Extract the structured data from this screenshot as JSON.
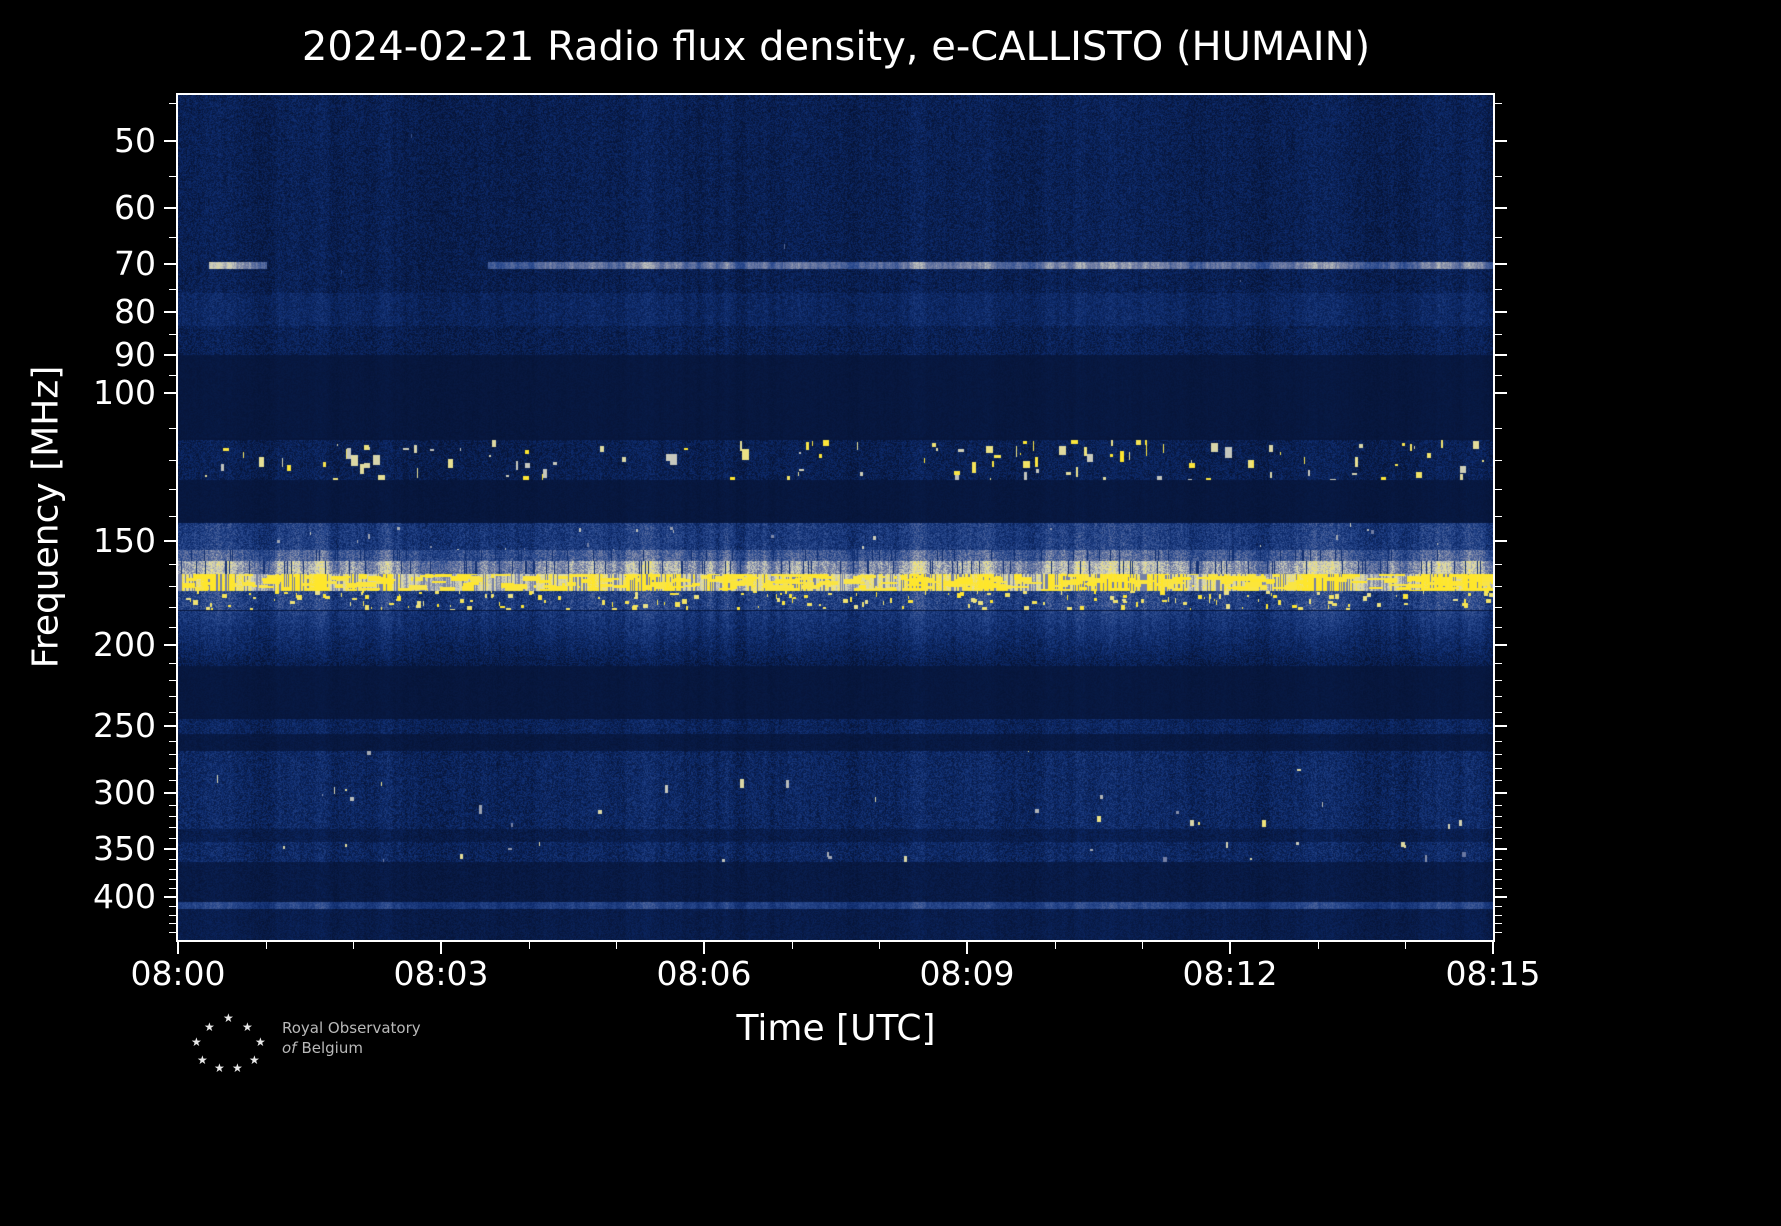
{
  "title": "2024-02-21 Radio flux density, e-CALLISTO (HUMAIN)",
  "chart_data": {
    "type": "heatmap",
    "title": "2024-02-21 Radio flux density, e-CALLISTO (HUMAIN)",
    "xlabel": "Time [UTC]",
    "ylabel": "Frequency [MHz]",
    "x_ticks": [
      "08:00",
      "08:03",
      "08:06",
      "08:09",
      "08:12",
      "08:15"
    ],
    "x_minor_divisions": 15,
    "y_scale": "log",
    "y_inverted": true,
    "y_range_mhz": [
      44,
      450
    ],
    "y_ticks": [
      50,
      60,
      70,
      80,
      90,
      100,
      150,
      200,
      250,
      300,
      350,
      400
    ],
    "y_minor_ticks": [
      45,
      55,
      65,
      75,
      85,
      95,
      110,
      120,
      130,
      140,
      160,
      170,
      180,
      190,
      210,
      220,
      230,
      240,
      260,
      270,
      280,
      290,
      310,
      320,
      330,
      340,
      360,
      370,
      380,
      390,
      410,
      420,
      430,
      440
    ],
    "frame_color": "#ffffff",
    "plot_background": "#061335",
    "colormap": [
      {
        "t": 0.0,
        "c": "#061335"
      },
      {
        "t": 0.18,
        "c": "#0d2a6b"
      },
      {
        "t": 0.35,
        "c": "#2a4a8f"
      },
      {
        "t": 0.55,
        "c": "#7580a5"
      },
      {
        "t": 0.72,
        "c": "#c9cabe"
      },
      {
        "t": 0.85,
        "c": "#e8e093"
      },
      {
        "t": 1.0,
        "c": "#ffe62b"
      }
    ],
    "bands": [
      {
        "name": "vhf-noise-floor-45-90",
        "f_low": 44,
        "f_high": 90,
        "base": 0.1,
        "noise": 0.1,
        "speckle_prob": 0.004,
        "speckle_min": 0.3,
        "speckle_max": 0.5,
        "speckle_w": 3,
        "speckle_h": 4
      },
      {
        "name": "haze-76-83",
        "f_low": 76,
        "f_high": 83,
        "base": 0.15,
        "noise": 0.09
      },
      {
        "name": "carrier-70mhz",
        "f_low": 69.8,
        "f_high": 70.9,
        "base": 0.5,
        "noise": 0.05,
        "segments": [
          {
            "t0": 0.023,
            "t1": 0.067,
            "v": 0.6
          },
          {
            "t0": 0.235,
            "t1": 1.0,
            "v": 0.5
          }
        ]
      },
      {
        "name": "quiet-90-113",
        "f_low": 90,
        "f_high": 113,
        "base": 0.035,
        "noise": 0.02
      },
      {
        "name": "airband-rfi-114-127",
        "f_low": 114,
        "f_high": 127,
        "base": 0.1,
        "noise": 0.1,
        "speckle_prob": 0.09,
        "speckle_min": 0.7,
        "speckle_max": 1.0,
        "speckle_w": 7,
        "speckle_h": 10
      },
      {
        "name": "quiet-127-143",
        "f_low": 127,
        "f_high": 143,
        "base": 0.035,
        "noise": 0.02
      },
      {
        "name": "noise-143-154",
        "f_low": 143,
        "f_high": 154,
        "base": 0.27,
        "noise": 0.12,
        "speckle_prob": 0.02,
        "speckle_min": 0.5,
        "speckle_max": 0.75,
        "speckle_w": 3,
        "speckle_h": 4
      },
      {
        "name": "pale-154-159",
        "f_low": 154,
        "f_high": 159,
        "base": 0.42,
        "noise": 0.12,
        "dropout_prob": 0.05,
        "dropout_value": 0.2
      },
      {
        "name": "pale-159-164",
        "f_low": 159,
        "f_high": 164.5,
        "base": 0.62,
        "noise": 0.12,
        "dropout_prob": 0.08,
        "dropout_value": 0.22
      },
      {
        "name": "strong-rfi-165-172",
        "f_low": 164.5,
        "f_high": 172,
        "base": 0.9,
        "noise": 0.08,
        "dropout_prob": 0.3,
        "dropout_value": 0.55,
        "speckle_prob": 0.3,
        "speckle_min": 0.95,
        "speckle_max": 1.0,
        "speckle_w": 20,
        "speckle_h": 4
      },
      {
        "name": "speckle-172-181",
        "f_low": 172.5,
        "f_high": 181,
        "base": 0.3,
        "noise": 0.13,
        "speckle_prob": 0.15,
        "speckle_min": 0.85,
        "speckle_max": 1.0,
        "speckle_w": 5,
        "speckle_h": 4
      },
      {
        "name": "fading-182-212",
        "f_low": 182,
        "f_high": 212,
        "base": 0.26,
        "noise": 0.1,
        "fade": 0.3
      },
      {
        "name": "quiet-212-244",
        "f_low": 212,
        "f_high": 244,
        "base": 0.035,
        "noise": 0.02
      },
      {
        "name": "band-245-256",
        "f_low": 245,
        "f_high": 256,
        "base": 0.13,
        "noise": 0.1
      },
      {
        "name": "quiet-256-268",
        "f_low": 256,
        "f_high": 268,
        "base": 0.045,
        "noise": 0.03
      },
      {
        "name": "uhf-noise-268-332",
        "f_low": 268,
        "f_high": 332,
        "base": 0.15,
        "noise": 0.11,
        "speckle_prob": 0.02,
        "speckle_min": 0.55,
        "speckle_max": 0.9,
        "speckle_w": 5,
        "speckle_h": 8
      },
      {
        "name": "dim-332-344",
        "f_low": 332,
        "f_high": 344,
        "base": 0.08,
        "noise": 0.06
      },
      {
        "name": "band-344-364",
        "f_low": 344,
        "f_high": 364,
        "base": 0.15,
        "noise": 0.11,
        "speckle_prob": 0.015,
        "speckle_min": 0.5,
        "speckle_max": 0.85,
        "speckle_w": 4,
        "speckle_h": 6
      },
      {
        "name": "dim-364-405",
        "f_low": 364,
        "f_high": 405,
        "base": 0.055,
        "noise": 0.04
      },
      {
        "name": "carrier-410",
        "f_low": 406,
        "f_high": 414,
        "base": 0.3,
        "noise": 0.06
      },
      {
        "name": "floor-414-450",
        "f_low": 414,
        "f_high": 450,
        "base": 0.075,
        "noise": 0.05
      }
    ]
  },
  "footer": {
    "org_line1": "Royal Observatory",
    "org_line2_prefix": "of",
    "org_line2": "Belgium",
    "logo_star": "★"
  }
}
